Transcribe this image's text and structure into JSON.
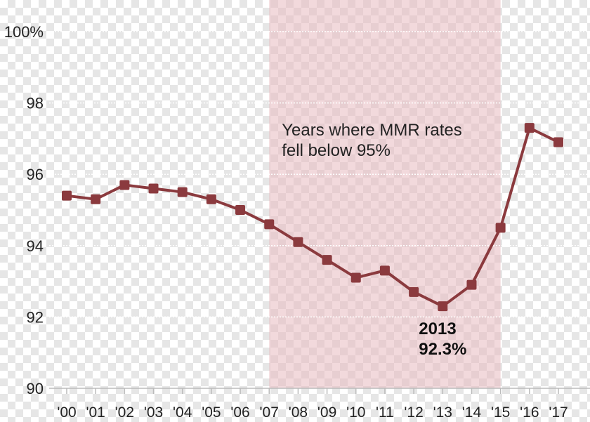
{
  "chart_data": {
    "type": "line",
    "categories": [
      "'00",
      "'01",
      "'02",
      "'03",
      "'04",
      "'05",
      "'06",
      "'07",
      "'08",
      "'09",
      "'10",
      "'11",
      "'12",
      "'13",
      "'14",
      "'15",
      "'16",
      "'17"
    ],
    "values": [
      95.4,
      95.3,
      95.7,
      95.6,
      95.5,
      95.3,
      95.0,
      94.6,
      94.1,
      93.6,
      93.1,
      93.3,
      92.7,
      92.3,
      92.9,
      94.5,
      97.3,
      96.9
    ],
    "ylim": [
      90,
      100
    ],
    "yticks": [
      90,
      92,
      94,
      96,
      98,
      100
    ],
    "ytick_labels": [
      "90",
      "92",
      "94",
      "96",
      "98",
      "100%"
    ],
    "grid": true,
    "line_color": "#8b3a3e",
    "shaded_region": {
      "from": "'07",
      "to": "'15",
      "color": "#e8b9bf",
      "label_lines": [
        "Years where MMR rates",
        "fell below 95%"
      ]
    },
    "callout": {
      "category": "'13",
      "lines": [
        "2013",
        "92.3%"
      ]
    }
  }
}
